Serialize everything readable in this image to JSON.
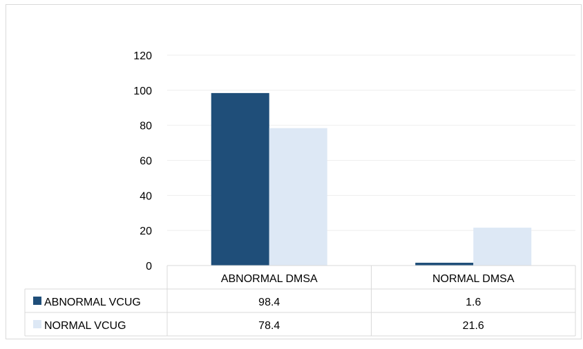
{
  "chart_data": {
    "type": "bar",
    "categories": [
      "ABNORMAL DMSA",
      "NORMAL DMSA"
    ],
    "series": [
      {
        "name": "ABNORMAL VCUG",
        "values": [
          98.4,
          1.6
        ],
        "color": "#1f4e79"
      },
      {
        "name": "NORMAL VCUG",
        "values": [
          78.4,
          21.6
        ],
        "color": "#dde8f5"
      }
    ],
    "ylim": [
      0,
      120
    ],
    "yticks": [
      0,
      20,
      40,
      60,
      80,
      100,
      120
    ],
    "grid": true,
    "legend": "data-table",
    "table_values": [
      [
        "98.4",
        "1.6"
      ],
      [
        "78.4",
        "21.6"
      ]
    ]
  }
}
